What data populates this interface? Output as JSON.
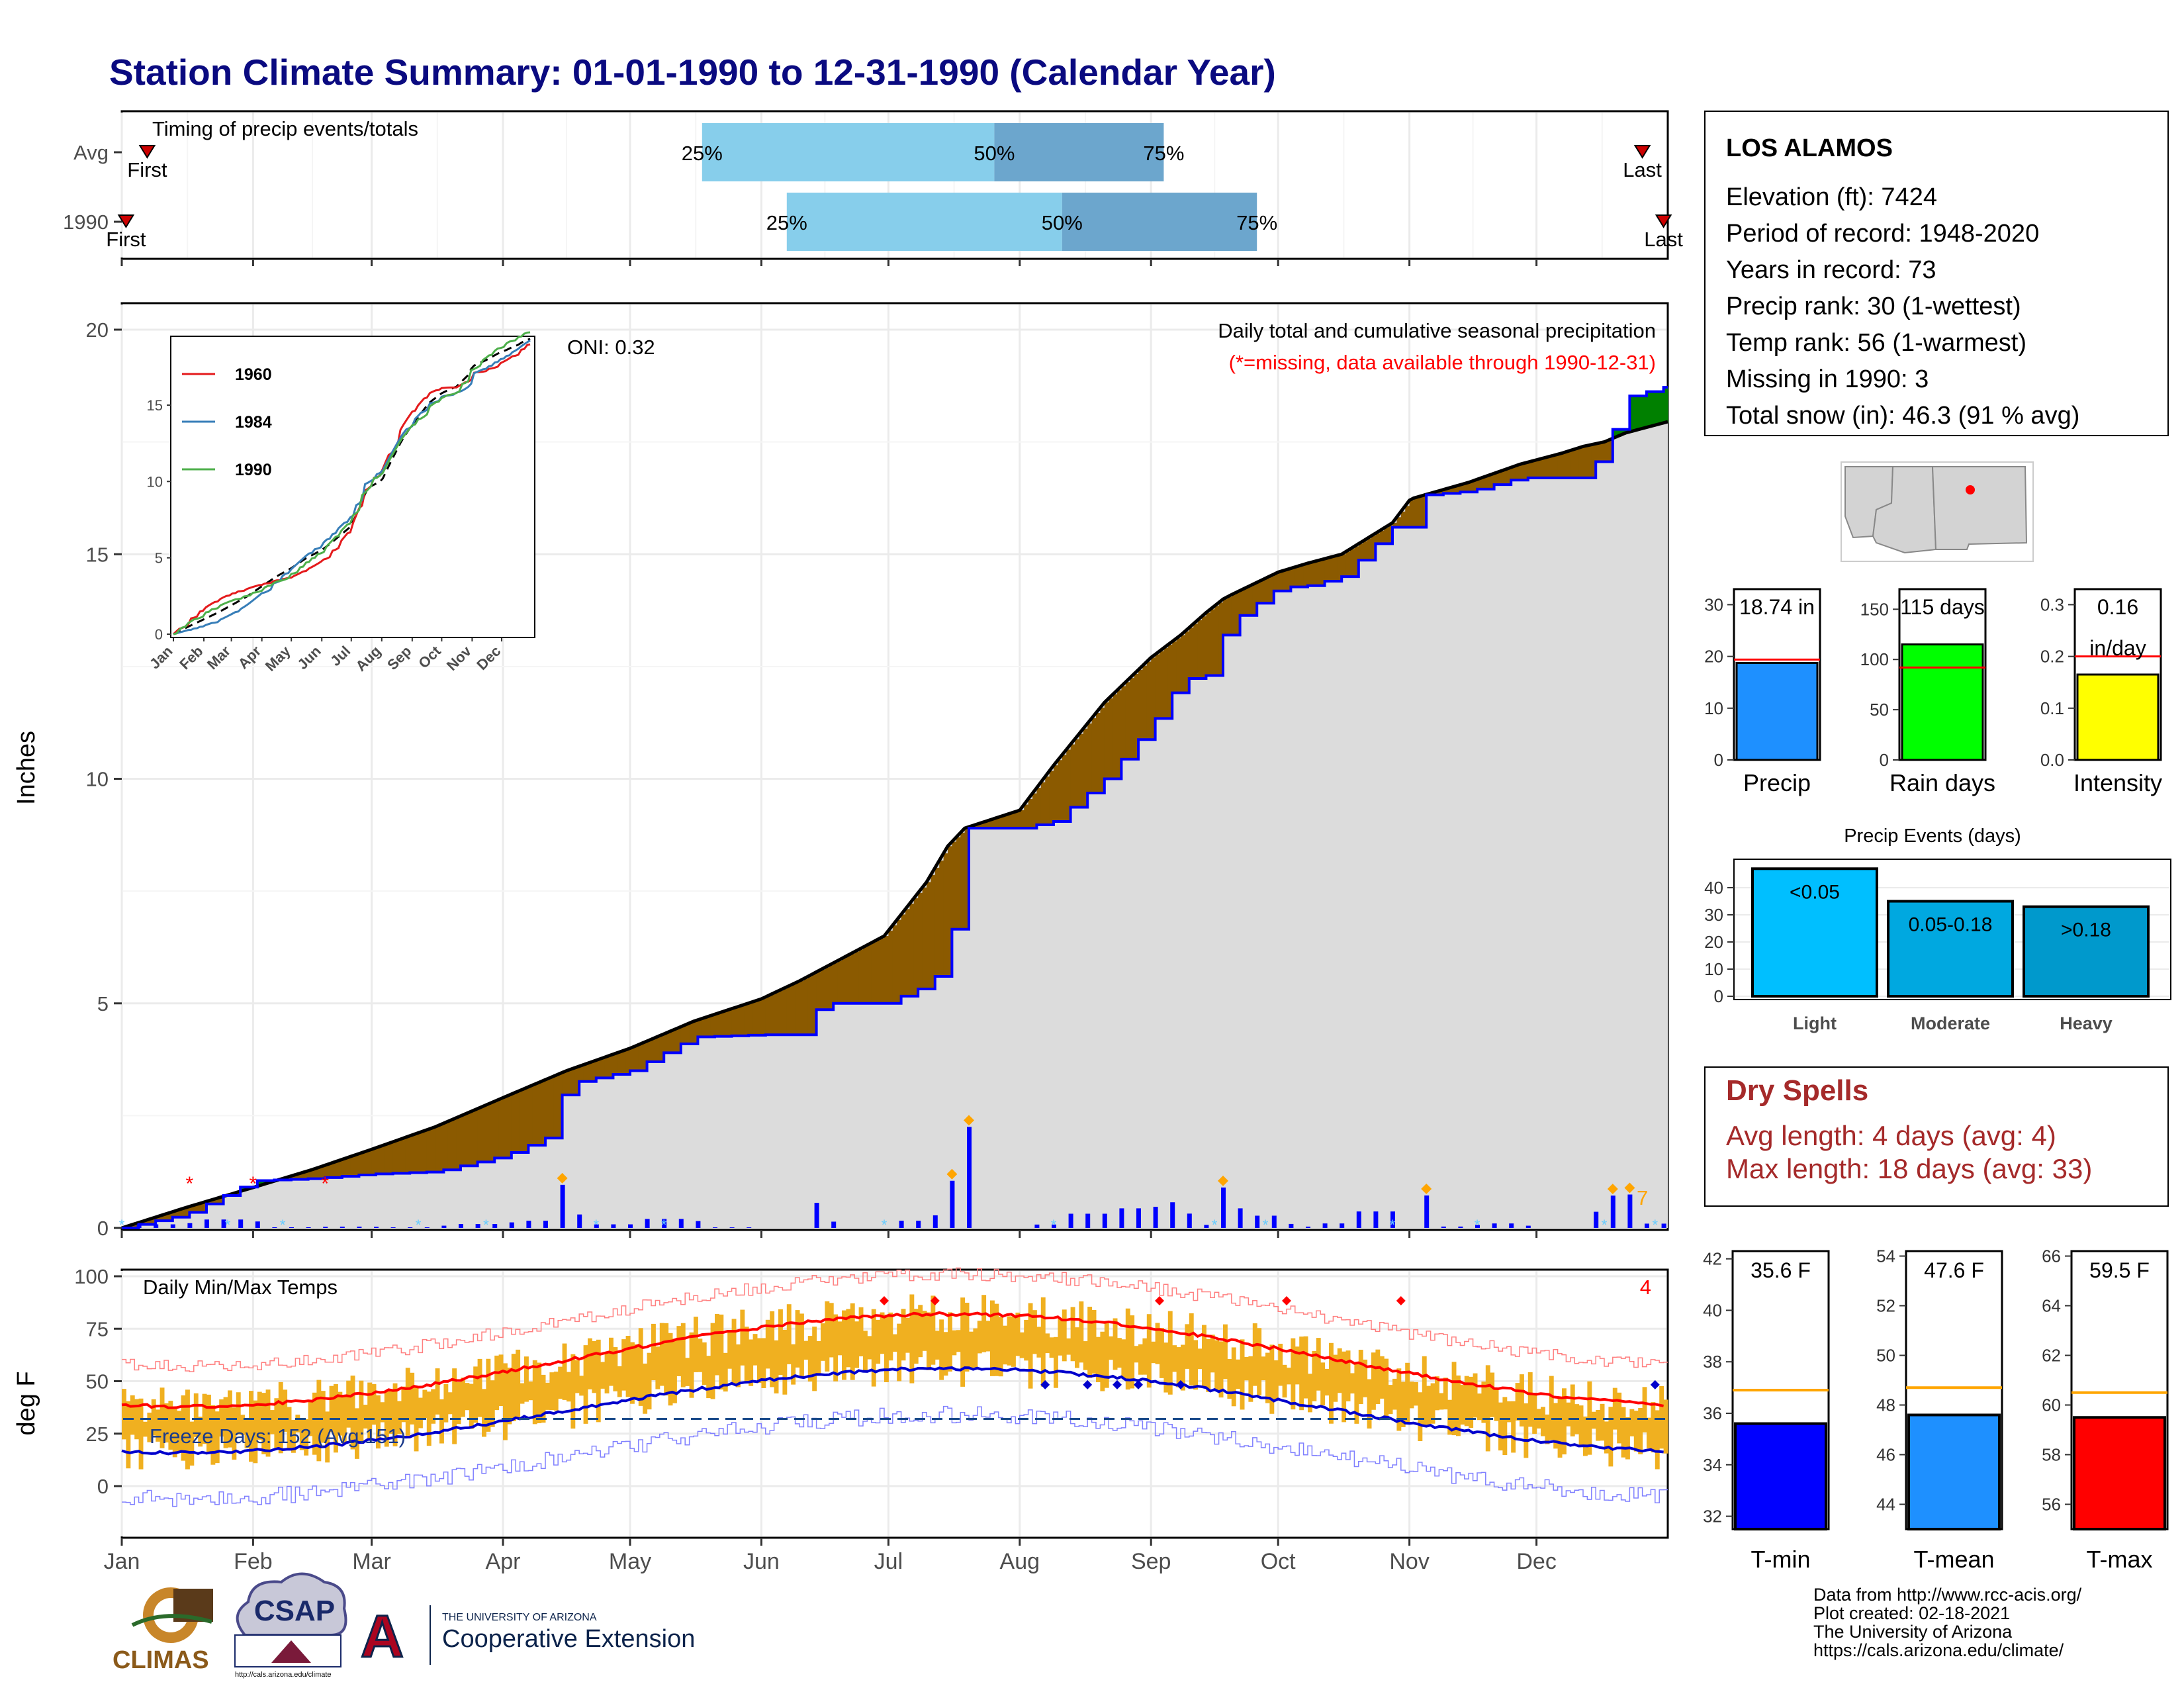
{
  "title": "Station Climate Summary: 01-01-1990 to 12-31-1990 (Calendar Year)",
  "colors": {
    "title": "#0a0a80",
    "pct_light": "#87ceeb",
    "pct_dark": "#6ca6cd",
    "above_avg": "#008000",
    "below_avg": "#8b5a00",
    "cum_line": "#0000ff",
    "normal_fill": "#dcdcdc",
    "daily_bar": "#0000ff",
    "temp_bar": "#f0b020",
    "tmax_line": "#ff0000",
    "tmin_line": "#0000cc",
    "dry_spell": "#a52a2a",
    "avg_ref": "#ffa500"
  },
  "months": [
    "Jan",
    "Feb",
    "Mar",
    "Apr",
    "May",
    "Jun",
    "Jul",
    "Aug",
    "Sep",
    "Oct",
    "Nov",
    "Dec"
  ],
  "timing": {
    "label": "Timing of precip events/totals",
    "rows": [
      {
        "name": "Avg",
        "first_label": "First",
        "last_label": "Last",
        "first_day": 6,
        "last_day": 359,
        "p25_day": 137,
        "p50_day": 206,
        "p75_day": 246
      },
      {
        "name": "1990",
        "first_label": "First",
        "last_label": "Last",
        "first_day": 1,
        "last_day": 364,
        "p25_day": 157,
        "p50_day": 222,
        "p75_day": 268
      }
    ],
    "pct_labels": [
      "25%",
      "50%",
      "75%"
    ]
  },
  "station": {
    "name": "LOS ALAMOS",
    "lines": [
      "Elevation (ft): 7424",
      "Period of record: 1948-2020",
      "Years in record: 73",
      "Precip rank: 30 (1-wettest)",
      "Temp rank: 56 (1-warmest)",
      "Missing in 1990: 3",
      "Total snow (in): 46.3 (91 % avg)"
    ]
  },
  "precip_panel": {
    "header": "Daily total and cumulative seasonal precipitation",
    "subheader": "(*=missing, data available through 1990-12-31)",
    "oni": "ONI: 0.32",
    "ylabel": "Inches",
    "count_label": "7"
  },
  "inset": {
    "legend": [
      "1960",
      "1984",
      "1990"
    ],
    "colors": [
      "#e41a1c",
      "#377eb8",
      "#4daf4a"
    ],
    "yticks": [
      "0",
      "5",
      "10",
      "15"
    ],
    "months": [
      "Jan",
      "Feb",
      "Mar",
      "Apr",
      "May",
      "Jun",
      "Jul",
      "Aug",
      "Sep",
      "Oct",
      "Nov",
      "Dec"
    ]
  },
  "summary_bars": [
    {
      "label": "Precip",
      "value_label": "18.74 in",
      "value": 18.74,
      "avg": 19.4,
      "ymax": 33,
      "ticks": [
        "0",
        "10",
        "20",
        "30"
      ],
      "color": "#1e90ff"
    },
    {
      "label": "Rain days",
      "value_label": "115 days",
      "value": 115,
      "avg": 92,
      "ymax": 170,
      "ticks": [
        "0",
        "50",
        "100",
        "150"
      ],
      "color": "#00ff00"
    },
    {
      "label": "Intensity",
      "value_label": "0.16",
      "value_label2": "in/day",
      "value": 0.165,
      "avg": 0.2,
      "ymax": 0.33,
      "ticks": [
        "0.0",
        "0.1",
        "0.2",
        "0.3"
      ],
      "color": "#ffff00"
    }
  ],
  "events": {
    "title": "Precip Events (days)",
    "bars": [
      {
        "label": "Light",
        "top": "<0.05",
        "value": 47,
        "color": "#00bfff"
      },
      {
        "label": "Moderate",
        "top": "0.05-0.18",
        "value": 35,
        "color": "#00a8e0"
      },
      {
        "label": "Heavy",
        "top": ">0.18",
        "value": 33,
        "color": "#0099cc"
      }
    ],
    "ticks": [
      "0",
      "10",
      "20",
      "30",
      "40"
    ]
  },
  "dry_spells": {
    "title": "Dry Spells",
    "avg": "Avg length: 4 days (avg: 4)",
    "max": "Max length: 18 days (avg: 33)"
  },
  "temp_panel": {
    "title": "Daily Min/Max Temps",
    "ylabel": "deg F",
    "freeze": "Freeze Days: 152 (Avg:151)",
    "count_label": "4",
    "yticks": [
      "0",
      "25",
      "50",
      "75",
      "100"
    ]
  },
  "temp_bars": [
    {
      "label": "T-min",
      "value_label": "35.6 F",
      "value": 35.6,
      "avg": 36.9,
      "ymin": 31.5,
      "ymax": 42.3,
      "ticks": [
        "32",
        "34",
        "36",
        "38",
        "40",
        "42"
      ],
      "color": "#0000ff"
    },
    {
      "label": "T-mean",
      "value_label": "47.6 F",
      "value": 47.6,
      "avg": 48.7,
      "ymin": 43,
      "ymax": 54.2,
      "ticks": [
        "44",
        "46",
        "48",
        "50",
        "52",
        "54"
      ],
      "color": "#1e90ff"
    },
    {
      "label": "T-max",
      "value_label": "59.5 F",
      "value": 59.5,
      "avg": 60.5,
      "ymin": 55,
      "ymax": 66.2,
      "ticks": [
        "56",
        "58",
        "60",
        "62",
        "64",
        "66"
      ],
      "color": "#ff0000"
    }
  ],
  "footer": {
    "lines": [
      "Data from http://www.rcc-acis.org/",
      "Plot created: 02-18-2021",
      "The University of Arizona",
      "https://cals.arizona.edu/climate/"
    ],
    "logo1": "CLIMAS",
    "logo2": "CSAP",
    "logo3_small": "THE UNIVERSITY OF ARIZONA",
    "logo3_big": "Cooperative Extension",
    "logo2_url": "http://cals.arizona.edu/climate"
  },
  "chart_data": [
    {
      "type": "area",
      "title": "Daily total and cumulative seasonal precipitation",
      "ylabel": "Inches",
      "ylim": [
        0,
        20.5
      ],
      "x_knots_doy": [
        0,
        15,
        31,
        45,
        59,
        74,
        90,
        100,
        105,
        120,
        135,
        151,
        160,
        165,
        180,
        190,
        195,
        199,
        212,
        220,
        232,
        243,
        250,
        256,
        260,
        262,
        273,
        280,
        288,
        300,
        304,
        305,
        318,
        330,
        334,
        340,
        345,
        350,
        355,
        365
      ],
      "normal_knots": [
        0,
        0.45,
        0.9,
        1.3,
        1.75,
        2.25,
        2.9,
        3.3,
        3.5,
        4.0,
        4.6,
        5.1,
        5.5,
        5.75,
        6.5,
        7.7,
        8.5,
        8.9,
        9.3,
        10.3,
        11.7,
        12.7,
        13.2,
        13.7,
        14.0,
        14.1,
        14.6,
        14.8,
        15.0,
        15.7,
        16.2,
        16.25,
        16.6,
        17.0,
        17.1,
        17.25,
        17.4,
        17.5,
        17.7,
        17.95
      ],
      "observed_knots": [
        0,
        0.3,
        1.05,
        1.1,
        1.2,
        1.25,
        1.6,
        2.0,
        3.2,
        3.5,
        4.25,
        4.3,
        4.3,
        5.0,
        5.0,
        5.4,
        5.9,
        8.9,
        8.9,
        9.05,
        10.0,
        11.2,
        12.2,
        12.3,
        13.2,
        13.5,
        14.25,
        14.3,
        14.5,
        15.6,
        15.6,
        16.3,
        16.4,
        16.7,
        16.7,
        16.7,
        16.7,
        17.3,
        18.5,
        18.74
      ]
    },
    {
      "type": "line",
      "title": "Daily Min/Max Temps",
      "ylabel": "deg F",
      "ylim": [
        -20,
        103
      ],
      "freeze_threshold": 32
    }
  ]
}
